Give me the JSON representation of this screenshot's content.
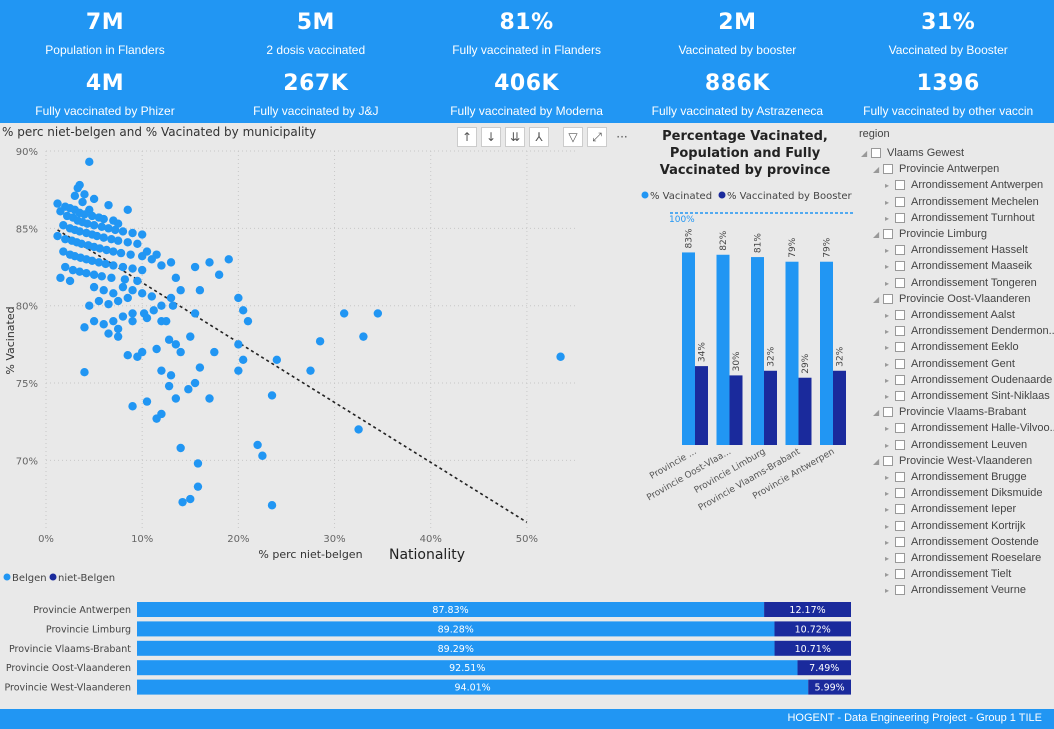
{
  "kpis": [
    {
      "value": "7M",
      "label": "Population in Flanders"
    },
    {
      "value": "5M",
      "label": "2 dosis vaccinated"
    },
    {
      "value": "81%",
      "label": "Fully vaccinated in Flanders"
    },
    {
      "value": "2M",
      "label": "Vaccinated by booster"
    },
    {
      "value": "31%",
      "label": "Vaccinated by Booster"
    },
    {
      "value": "4M",
      "label": "Fully vaccinated by Phizer"
    },
    {
      "value": "267K",
      "label": "Fully vaccinated by J&J"
    },
    {
      "value": "406K",
      "label": "Fully vaccinated by Moderna"
    },
    {
      "value": "886K",
      "label": "Fully vaccinated by Astrazeneca"
    },
    {
      "value": "1396",
      "label": "Fully vaccinated by other vaccin"
    }
  ],
  "toolbar": {
    "icons": [
      "arrow-up-icon",
      "arrow-down-icon",
      "double-arrow-down-icon",
      "expand-hierarchy-icon",
      "filter-icon",
      "focus-mode-icon",
      "more-options-icon"
    ],
    "glyphs": [
      "↑",
      "↓",
      "⇊",
      "⅄",
      "▽",
      "⤢",
      "···"
    ]
  },
  "colors": {
    "belgen": "#2196f3",
    "niet_belgen": "#1a2a9c",
    "header": "#2196f3",
    "background": "#e9e9e9"
  },
  "chart_data": [
    {
      "type": "scatter",
      "title": "% perc niet-belgen and % Vacinated by municipality",
      "xlabel": "% perc niet-belgen",
      "ylabel": "% Vacinated",
      "xlim": [
        0,
        0.55
      ],
      "ylim": [
        0.655,
        0.9
      ],
      "x_ticks": [
        0,
        0.1,
        0.2,
        0.3,
        0.4,
        0.5
      ],
      "x_tick_labels": [
        "0%",
        "10%",
        "20%",
        "30%",
        "40%",
        "50%"
      ],
      "y_ticks": [
        0.7,
        0.75,
        0.8,
        0.85,
        0.9
      ],
      "y_tick_labels": [
        "70%",
        "75%",
        "80%",
        "85%",
        "90%"
      ],
      "grid": true,
      "trend_line": {
        "x": [
          0.012,
          0.5
        ],
        "y": [
          0.849,
          0.66
        ]
      },
      "points": [
        [
          0.045,
          0.893
        ],
        [
          0.033,
          0.876
        ],
        [
          0.035,
          0.878
        ],
        [
          0.04,
          0.872
        ],
        [
          0.03,
          0.871
        ],
        [
          0.05,
          0.869
        ],
        [
          0.038,
          0.867
        ],
        [
          0.065,
          0.865
        ],
        [
          0.085,
          0.862
        ],
        [
          0.045,
          0.862
        ],
        [
          0.012,
          0.866
        ],
        [
          0.02,
          0.864
        ],
        [
          0.025,
          0.863
        ],
        [
          0.03,
          0.862
        ],
        [
          0.035,
          0.86
        ],
        [
          0.04,
          0.859
        ],
        [
          0.048,
          0.858
        ],
        [
          0.055,
          0.857
        ],
        [
          0.06,
          0.856
        ],
        [
          0.07,
          0.855
        ],
        [
          0.075,
          0.853
        ],
        [
          0.015,
          0.861
        ],
        [
          0.022,
          0.858
        ],
        [
          0.028,
          0.857
        ],
        [
          0.033,
          0.855
        ],
        [
          0.038,
          0.854
        ],
        [
          0.043,
          0.853
        ],
        [
          0.05,
          0.852
        ],
        [
          0.058,
          0.851
        ],
        [
          0.065,
          0.85
        ],
        [
          0.072,
          0.849
        ],
        [
          0.08,
          0.848
        ],
        [
          0.09,
          0.847
        ],
        [
          0.1,
          0.846
        ],
        [
          0.018,
          0.852
        ],
        [
          0.025,
          0.85
        ],
        [
          0.03,
          0.849
        ],
        [
          0.035,
          0.848
        ],
        [
          0.042,
          0.847
        ],
        [
          0.048,
          0.846
        ],
        [
          0.053,
          0.845
        ],
        [
          0.06,
          0.844
        ],
        [
          0.068,
          0.843
        ],
        [
          0.075,
          0.842
        ],
        [
          0.085,
          0.841
        ],
        [
          0.095,
          0.84
        ],
        [
          0.012,
          0.845
        ],
        [
          0.02,
          0.843
        ],
        [
          0.027,
          0.842
        ],
        [
          0.032,
          0.841
        ],
        [
          0.037,
          0.84
        ],
        [
          0.044,
          0.839
        ],
        [
          0.05,
          0.838
        ],
        [
          0.056,
          0.837
        ],
        [
          0.063,
          0.836
        ],
        [
          0.07,
          0.835
        ],
        [
          0.078,
          0.834
        ],
        [
          0.088,
          0.833
        ],
        [
          0.1,
          0.832
        ],
        [
          0.115,
          0.833
        ],
        [
          0.105,
          0.835
        ],
        [
          0.11,
          0.83
        ],
        [
          0.018,
          0.835
        ],
        [
          0.025,
          0.833
        ],
        [
          0.03,
          0.832
        ],
        [
          0.036,
          0.831
        ],
        [
          0.042,
          0.83
        ],
        [
          0.048,
          0.829
        ],
        [
          0.055,
          0.828
        ],
        [
          0.062,
          0.827
        ],
        [
          0.07,
          0.826
        ],
        [
          0.08,
          0.825
        ],
        [
          0.09,
          0.824
        ],
        [
          0.1,
          0.823
        ],
        [
          0.12,
          0.826
        ],
        [
          0.02,
          0.825
        ],
        [
          0.028,
          0.823
        ],
        [
          0.035,
          0.822
        ],
        [
          0.042,
          0.821
        ],
        [
          0.05,
          0.82
        ],
        [
          0.058,
          0.819
        ],
        [
          0.068,
          0.818
        ],
        [
          0.082,
          0.817
        ],
        [
          0.095,
          0.816
        ],
        [
          0.015,
          0.818
        ],
        [
          0.025,
          0.816
        ],
        [
          0.05,
          0.812
        ],
        [
          0.06,
          0.81
        ],
        [
          0.07,
          0.808
        ],
        [
          0.08,
          0.812
        ],
        [
          0.09,
          0.81
        ],
        [
          0.1,
          0.808
        ],
        [
          0.11,
          0.806
        ],
        [
          0.085,
          0.805
        ],
        [
          0.075,
          0.803
        ],
        [
          0.065,
          0.801
        ],
        [
          0.055,
          0.803
        ],
        [
          0.045,
          0.8
        ],
        [
          0.13,
          0.828
        ],
        [
          0.135,
          0.818
        ],
        [
          0.14,
          0.81
        ],
        [
          0.13,
          0.805
        ],
        [
          0.12,
          0.8
        ],
        [
          0.112,
          0.797
        ],
        [
          0.102,
          0.795
        ],
        [
          0.09,
          0.795
        ],
        [
          0.08,
          0.793
        ],
        [
          0.07,
          0.79
        ],
        [
          0.075,
          0.785
        ],
        [
          0.09,
          0.79
        ],
        [
          0.105,
          0.792
        ],
        [
          0.12,
          0.79
        ],
        [
          0.132,
          0.8
        ],
        [
          0.155,
          0.825
        ],
        [
          0.17,
          0.828
        ],
        [
          0.19,
          0.83
        ],
        [
          0.16,
          0.81
        ],
        [
          0.18,
          0.82
        ],
        [
          0.155,
          0.795
        ],
        [
          0.15,
          0.78
        ],
        [
          0.175,
          0.77
        ],
        [
          0.16,
          0.76
        ],
        [
          0.125,
          0.79
        ],
        [
          0.128,
          0.778
        ],
        [
          0.135,
          0.775
        ],
        [
          0.14,
          0.77
        ],
        [
          0.115,
          0.772
        ],
        [
          0.1,
          0.77
        ],
        [
          0.085,
          0.768
        ],
        [
          0.095,
          0.767
        ],
        [
          0.075,
          0.78
        ],
        [
          0.065,
          0.782
        ],
        [
          0.06,
          0.788
        ],
        [
          0.05,
          0.79
        ],
        [
          0.04,
          0.786
        ],
        [
          0.12,
          0.758
        ],
        [
          0.13,
          0.755
        ],
        [
          0.148,
          0.746
        ],
        [
          0.128,
          0.748
        ],
        [
          0.135,
          0.74
        ],
        [
          0.155,
          0.75
        ],
        [
          0.17,
          0.74
        ],
        [
          0.105,
          0.738
        ],
        [
          0.09,
          0.735
        ],
        [
          0.12,
          0.73
        ],
        [
          0.115,
          0.727
        ],
        [
          0.2,
          0.805
        ],
        [
          0.205,
          0.797
        ],
        [
          0.21,
          0.79
        ],
        [
          0.2,
          0.775
        ],
        [
          0.205,
          0.765
        ],
        [
          0.2,
          0.758
        ],
        [
          0.24,
          0.765
        ],
        [
          0.235,
          0.742
        ],
        [
          0.275,
          0.758
        ],
        [
          0.285,
          0.777
        ],
        [
          0.31,
          0.795
        ],
        [
          0.33,
          0.78
        ],
        [
          0.345,
          0.795
        ],
        [
          0.325,
          0.72
        ],
        [
          0.04,
          0.757
        ],
        [
          0.14,
          0.708
        ],
        [
          0.158,
          0.698
        ],
        [
          0.158,
          0.683
        ],
        [
          0.15,
          0.675
        ],
        [
          0.142,
          0.673
        ],
        [
          0.225,
          0.703
        ],
        [
          0.22,
          0.71
        ],
        [
          0.235,
          0.671
        ],
        [
          0.535,
          0.767
        ]
      ]
    },
    {
      "type": "bar",
      "title": "Percentage Vacinated, Population and Fully Vaccinated by province",
      "categories": [
        "Provincie ...",
        "Provincie Oost-Vlaa...",
        "Provincie Limburg",
        "Provincie Vlaams-Brabant",
        "Provincie Antwerpen"
      ],
      "series": [
        {
          "name": "% Vacinated",
          "values": [
            0.83,
            0.82,
            0.81,
            0.79,
            0.79
          ],
          "labels": [
            "83%",
            "82%",
            "81%",
            "79%",
            "79%"
          ]
        },
        {
          "name": "% Vaccinated by Booster",
          "values": [
            0.34,
            0.3,
            0.32,
            0.29,
            0.32
          ],
          "labels": [
            "34%",
            "30%",
            "32%",
            "29%",
            "32%"
          ]
        }
      ],
      "reference_line": {
        "value": 1.0,
        "label": "100%"
      },
      "ylim": [
        0,
        1.0
      ],
      "legend": "top"
    },
    {
      "type": "bar",
      "orientation": "horizontal",
      "stacked": true,
      "title": "Nationality",
      "categories": [
        "Provincie Antwerpen",
        "Provincie Limburg",
        "Provincie Vlaams-Brabant",
        "Provincie Oost-Vlaanderen",
        "Provincie West-Vlaanderen"
      ],
      "series": [
        {
          "name": "Belgen",
          "values": [
            0.8783,
            0.8928,
            0.8929,
            0.9251,
            0.9401
          ],
          "labels": [
            "87.83%",
            "89.28%",
            "89.29%",
            "92.51%",
            "94.01%"
          ]
        },
        {
          "name": "niet-Belgen",
          "values": [
            0.1217,
            0.1072,
            0.1071,
            0.0749,
            0.0599
          ],
          "labels": [
            "12.17%",
            "10.72%",
            "10.71%",
            "7.49%",
            "5.99%"
          ]
        }
      ],
      "legend": "top-left"
    }
  ],
  "tree": {
    "title": "region",
    "items": [
      {
        "label": "Vlaams Gewest",
        "level": 0,
        "expanded": true
      },
      {
        "label": "Provincie Antwerpen",
        "level": 1,
        "expanded": true
      },
      {
        "label": "Arrondissement Antwerpen",
        "level": 2,
        "expanded": false
      },
      {
        "label": "Arrondissement Mechelen",
        "level": 2,
        "expanded": false
      },
      {
        "label": "Arrondissement Turnhout",
        "level": 2,
        "expanded": false
      },
      {
        "label": "Provincie Limburg",
        "level": 1,
        "expanded": true
      },
      {
        "label": "Arrondissement Hasselt",
        "level": 2,
        "expanded": false
      },
      {
        "label": "Arrondissement Maaseik",
        "level": 2,
        "expanded": false
      },
      {
        "label": "Arrondissement Tongeren",
        "level": 2,
        "expanded": false
      },
      {
        "label": "Provincie Oost-Vlaanderen",
        "level": 1,
        "expanded": true
      },
      {
        "label": "Arrondissement Aalst",
        "level": 2,
        "expanded": false
      },
      {
        "label": "Arrondissement Dendermon...",
        "level": 2,
        "expanded": false
      },
      {
        "label": "Arrondissement Eeklo",
        "level": 2,
        "expanded": false
      },
      {
        "label": "Arrondissement Gent",
        "level": 2,
        "expanded": false
      },
      {
        "label": "Arrondissement Oudenaarde",
        "level": 2,
        "expanded": false
      },
      {
        "label": "Arrondissement Sint-Niklaas",
        "level": 2,
        "expanded": false
      },
      {
        "label": "Provincie Vlaams-Brabant",
        "level": 1,
        "expanded": true
      },
      {
        "label": "Arrondissement Halle-Vilvoo...",
        "level": 2,
        "expanded": false
      },
      {
        "label": "Arrondissement Leuven",
        "level": 2,
        "expanded": false
      },
      {
        "label": "Provincie West-Vlaanderen",
        "level": 1,
        "expanded": true
      },
      {
        "label": "Arrondissement Brugge",
        "level": 2,
        "expanded": false
      },
      {
        "label": "Arrondissement Diksmuide",
        "level": 2,
        "expanded": false
      },
      {
        "label": "Arrondissement Ieper",
        "level": 2,
        "expanded": false
      },
      {
        "label": "Arrondissement Kortrijk",
        "level": 2,
        "expanded": false
      },
      {
        "label": "Arrondissement Oostende",
        "level": 2,
        "expanded": false
      },
      {
        "label": "Arrondissement Roeselare",
        "level": 2,
        "expanded": false
      },
      {
        "label": "Arrondissement Tielt",
        "level": 2,
        "expanded": false
      },
      {
        "label": "Arrondissement Veurne",
        "level": 2,
        "expanded": false
      }
    ]
  },
  "footer": {
    "text": "HOGENT - Data Engineering Project - Group 1 TILE"
  }
}
